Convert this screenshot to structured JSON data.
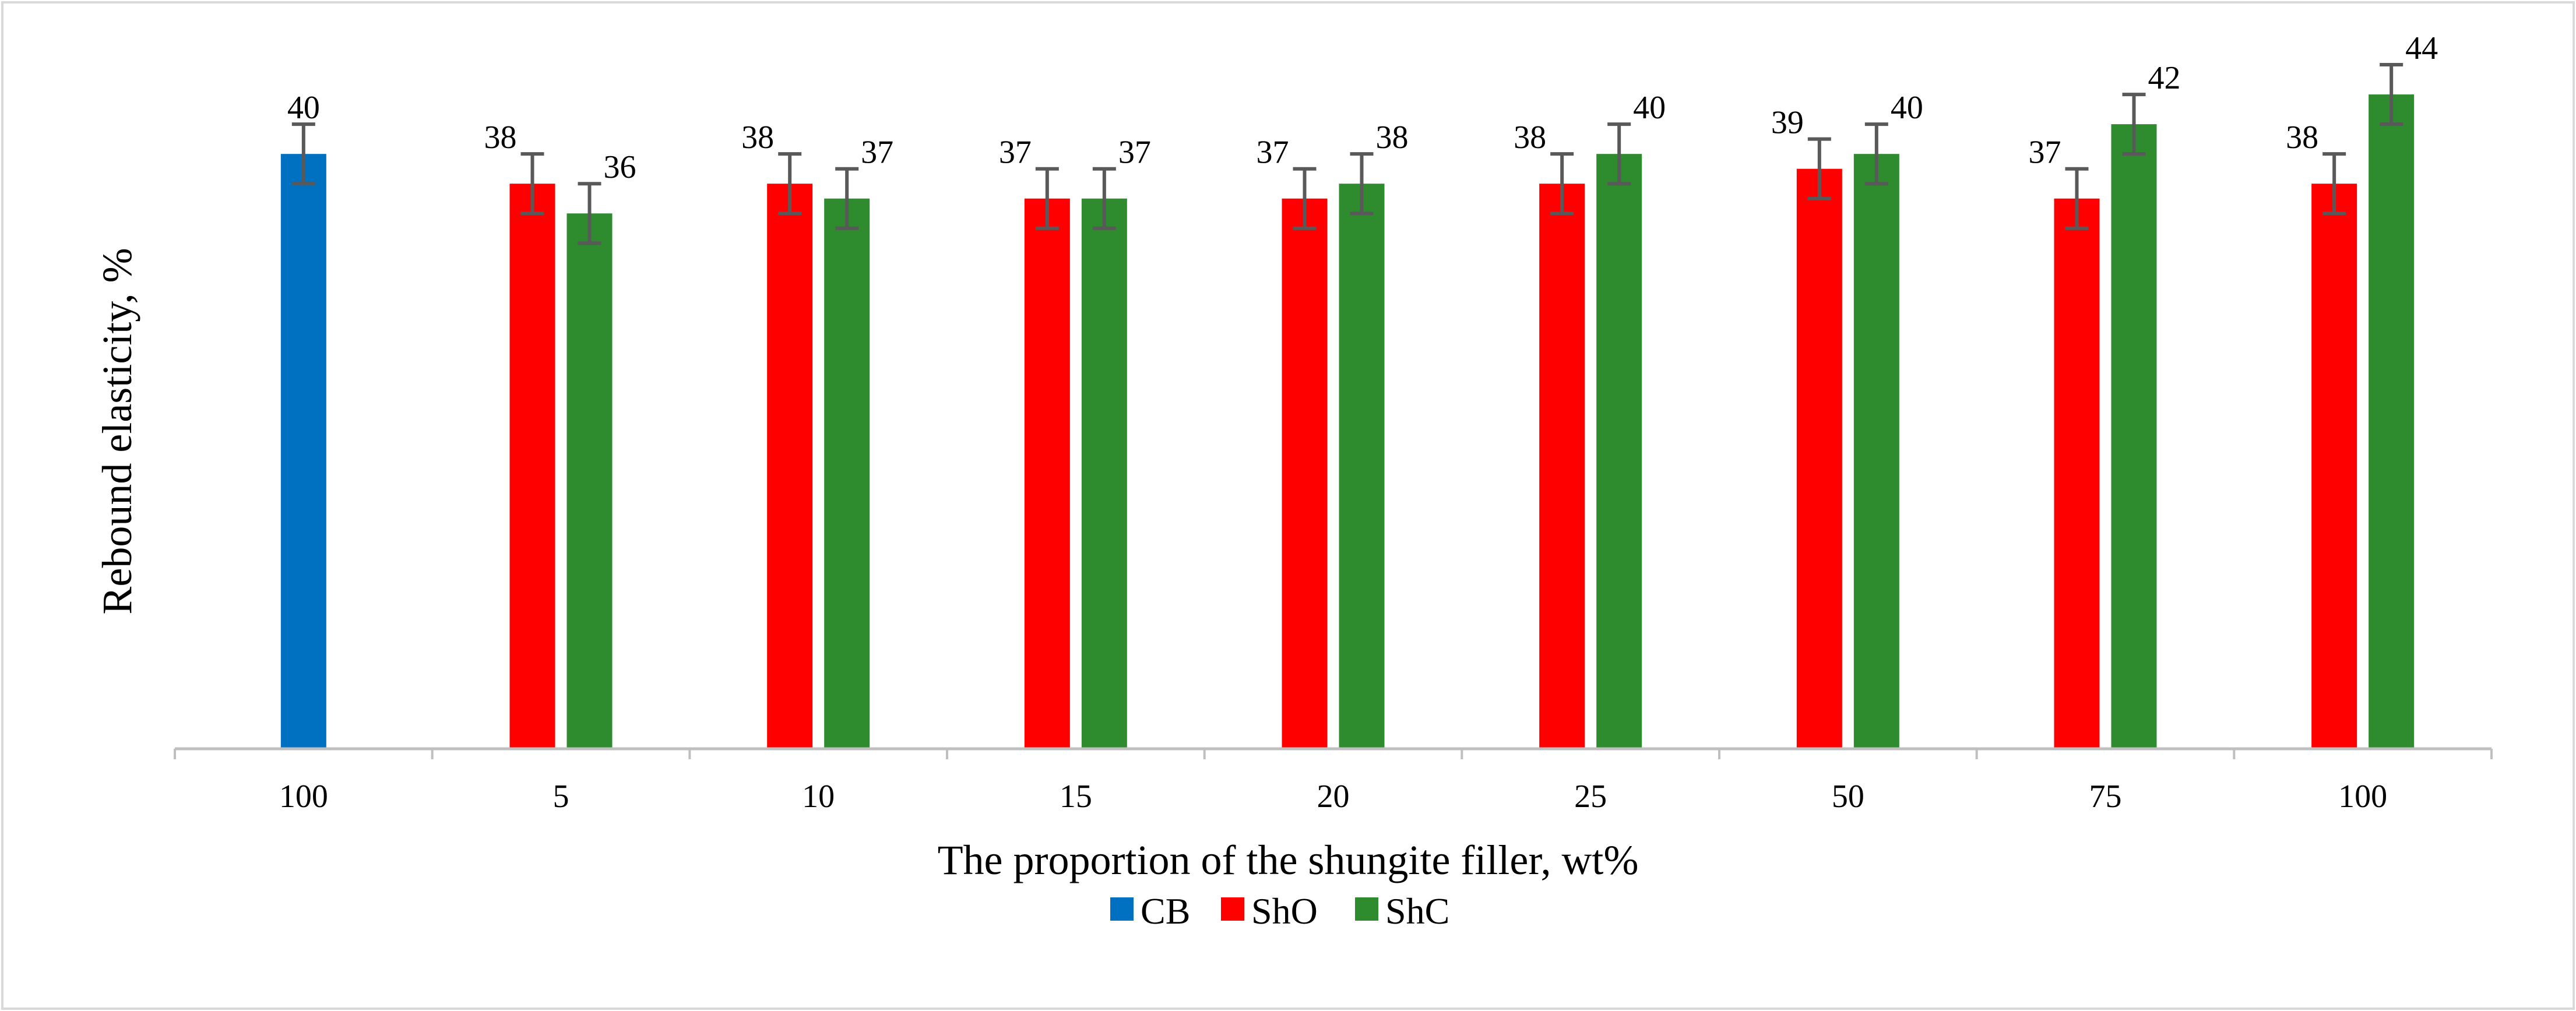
{
  "chart_data": {
    "type": "bar",
    "title": "",
    "xlabel": "The proportion of the shungite filler, wt%",
    "ylabel": "Rebound elasticity, %",
    "ylim": [
      0,
      48
    ],
    "categories": [
      "100",
      "5",
      "10",
      "15",
      "20",
      "25",
      "50",
      "75",
      "100"
    ],
    "series": [
      {
        "name": "CB",
        "color": "#0070c0",
        "values": [
          40,
          null,
          null,
          null,
          null,
          null,
          null,
          null,
          null
        ],
        "errors": [
          2,
          null,
          null,
          null,
          null,
          null,
          null,
          null,
          null
        ]
      },
      {
        "name": "ShO",
        "color": "#ff0000",
        "values": [
          null,
          38,
          38,
          37,
          37,
          38,
          39,
          37,
          38
        ],
        "errors": [
          null,
          2,
          2,
          2,
          2,
          2,
          2,
          2,
          2
        ]
      },
      {
        "name": "ShC",
        "color": "#2e8b2e",
        "values": [
          null,
          36,
          37,
          37,
          38,
          40,
          40,
          42,
          44
        ],
        "errors": [
          null,
          2,
          2,
          2,
          2,
          2,
          2,
          2,
          2
        ]
      }
    ],
    "legend_position": "bottom",
    "grid": false
  }
}
